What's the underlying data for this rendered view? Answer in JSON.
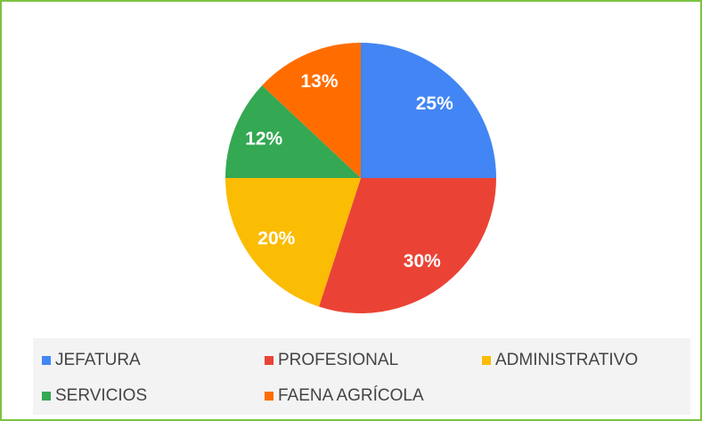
{
  "chart_data": {
    "type": "pie",
    "categories": [
      "JEFATURA",
      "PROFESIONAL",
      "ADMINISTRATIVO",
      "SERVICIOS",
      "FAENA AGRÍCOLA"
    ],
    "values": [
      25,
      30,
      20,
      12,
      13
    ],
    "value_labels": [
      "25%",
      "30%",
      "20%",
      "12%",
      "13%"
    ],
    "colors": [
      "#4285f4",
      "#ea4335",
      "#fbbc04",
      "#34a853",
      "#ff6d01"
    ],
    "legend": "bottom"
  }
}
